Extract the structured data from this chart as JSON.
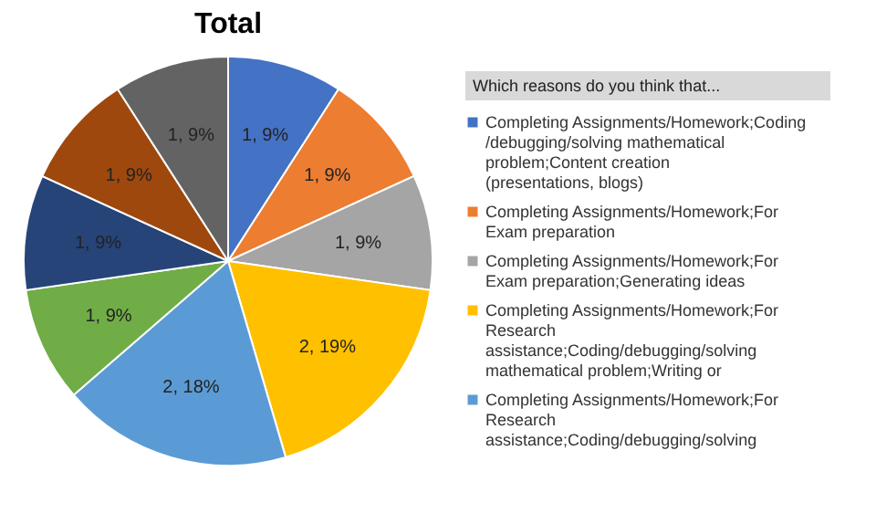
{
  "chart_data": {
    "type": "pie",
    "title": "Total",
    "legend_title": "Which reasons do you think that...",
    "legend": "right",
    "categories": [
      "Completing Assignments/Homework;Coding/debugging/solving mathematical problem;Content creation (presentations, blogs)",
      "Completing Assignments/Homework;For Exam preparation",
      "Completing Assignments/Homework;For Exam preparation;Generating ideas",
      "Completing Assignments/Homework;For Research assistance;Coding/debugging/solving mathematical problem;Writing or",
      "Completing Assignments/Homework;For Research assistance;Coding/debugging/solving",
      null,
      null,
      null,
      null
    ],
    "values": [
      1,
      1,
      1,
      2,
      2,
      1,
      1,
      1,
      1
    ],
    "value_labels": [
      "1, 9%",
      "1, 9%",
      "1, 9%",
      "2, 19%",
      "2, 18%",
      "1, 9%",
      "1, 9%",
      "1, 9%",
      "1, 9%"
    ],
    "colors": [
      "#4472c4",
      "#ed7d31",
      "#a5a5a5",
      "#ffc000",
      "#5b9bd5",
      "#70ad47",
      "#264478",
      "#9e480e",
      "#636363"
    ]
  }
}
